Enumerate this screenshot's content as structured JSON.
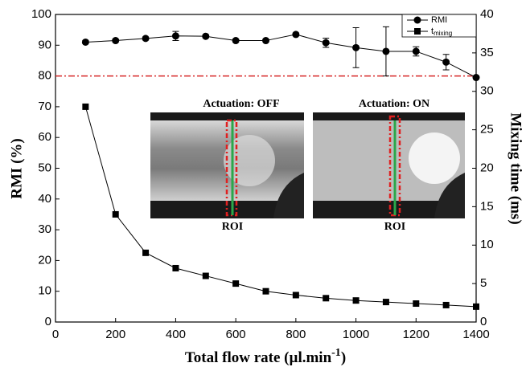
{
  "chart_data": {
    "type": "line",
    "x_label": {
      "text": "Total flow rate (µl.min",
      "superscript": "-1",
      "suffix": ")"
    },
    "y_label": "RMI (%)",
    "y2_label": "Mixing time (ms)",
    "x": [
      100,
      200,
      300,
      400,
      500,
      600,
      700,
      800,
      900,
      1000,
      1100,
      1200,
      1300,
      1400
    ],
    "series": [
      {
        "name": "RMI",
        "color": "#000000",
        "marker": "circle",
        "values": [
          91,
          91.5,
          92.2,
          93,
          92.9,
          91.5,
          91.5,
          93.5,
          90.8,
          89.2,
          88,
          88,
          84.5,
          79.5
        ],
        "errors": [
          0.5,
          0.5,
          0.5,
          1.5,
          0.5,
          0.5,
          0.5,
          0.5,
          1.5,
          6.5,
          8,
          1.5,
          2.5,
          0.5
        ]
      },
      {
        "name": "t",
        "subscript": "mixing",
        "color": "#000000",
        "marker": "square",
        "axis": "y2",
        "values": [
          28,
          14,
          9,
          7,
          6,
          5,
          4,
          3.5,
          3.1,
          2.8,
          2.6,
          2.4,
          2.2,
          2.0
        ]
      }
    ],
    "hline": {
      "value": 80,
      "color": "#d62728"
    },
    "annotations": [
      "Actuation: OFF",
      "Actuation: ON",
      "ROI",
      "ROI"
    ],
    "xlim": [
      0,
      1400
    ],
    "xticks": [
      0,
      200,
      400,
      600,
      800,
      1000,
      1200,
      1400
    ],
    "ylim": [
      0,
      100
    ],
    "yticks": [
      0,
      10,
      20,
      30,
      40,
      50,
      60,
      70,
      80,
      90,
      100
    ],
    "y2lim": [
      0,
      40
    ],
    "y2ticks": [
      0,
      5,
      10,
      15,
      20,
      25,
      30,
      35,
      40
    ],
    "legend": "upper right"
  }
}
